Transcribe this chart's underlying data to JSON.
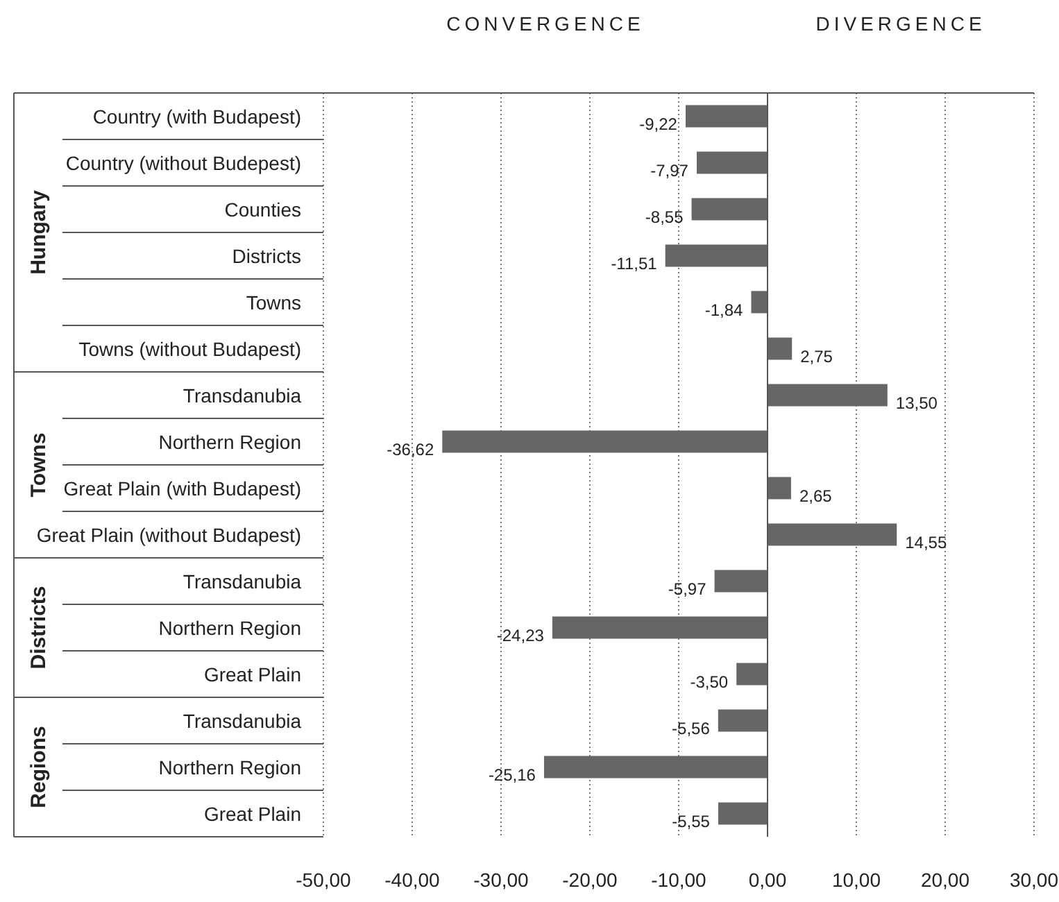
{
  "chart_data": {
    "type": "bar",
    "orientation": "horizontal",
    "categories": [
      "Country (with Budapest)",
      "Country (without Budepest)",
      "Counties",
      "Districts",
      "Towns",
      "Towns (without Budapest)",
      "Transdanubia",
      "Northern Region",
      "Great Plain (with Budapest)",
      "Great Plain (without Budapest)",
      "Transdanubia",
      "Northern Region",
      "Great Plain",
      "Transdanubia",
      "Northern Region",
      "Great Plain"
    ],
    "values": [
      -9.22,
      -7.97,
      -8.55,
      -11.51,
      -1.84,
      2.75,
      13.5,
      -36.62,
      2.65,
      14.55,
      -5.97,
      -24.23,
      -3.5,
      -5.56,
      -25.16,
      -5.55
    ],
    "value_labels": [
      "-9,22",
      "-7,97",
      "-8,55",
      "-11,51",
      "-1,84",
      "2,75",
      "13,50",
      "-36,62",
      "2,65",
      "14,55",
      "-5,97",
      "-24,23",
      "-3,50",
      "-5,56",
      "-25,16",
      "-5,55"
    ],
    "color": "#666666",
    "xlim": [
      -50,
      30
    ],
    "xticks": [
      {
        "value": -50,
        "label": "-50,00"
      },
      {
        "value": -40,
        "label": "-40,00"
      },
      {
        "value": -30,
        "label": "-30,00"
      },
      {
        "value": -20,
        "label": "-20,00"
      },
      {
        "value": -10,
        "label": "-10,00"
      },
      {
        "value": 0,
        "label": "0,00"
      },
      {
        "value": 10,
        "label": "10,00"
      },
      {
        "value": 20,
        "label": "20,00"
      },
      {
        "value": 30,
        "label": "30,00"
      }
    ],
    "grid": "x",
    "legend": false,
    "annotations": [
      "CONVERGENCE",
      "DIVERGENCE",
      "Hungary",
      "Towns",
      "Districts",
      "Regions"
    ]
  }
}
